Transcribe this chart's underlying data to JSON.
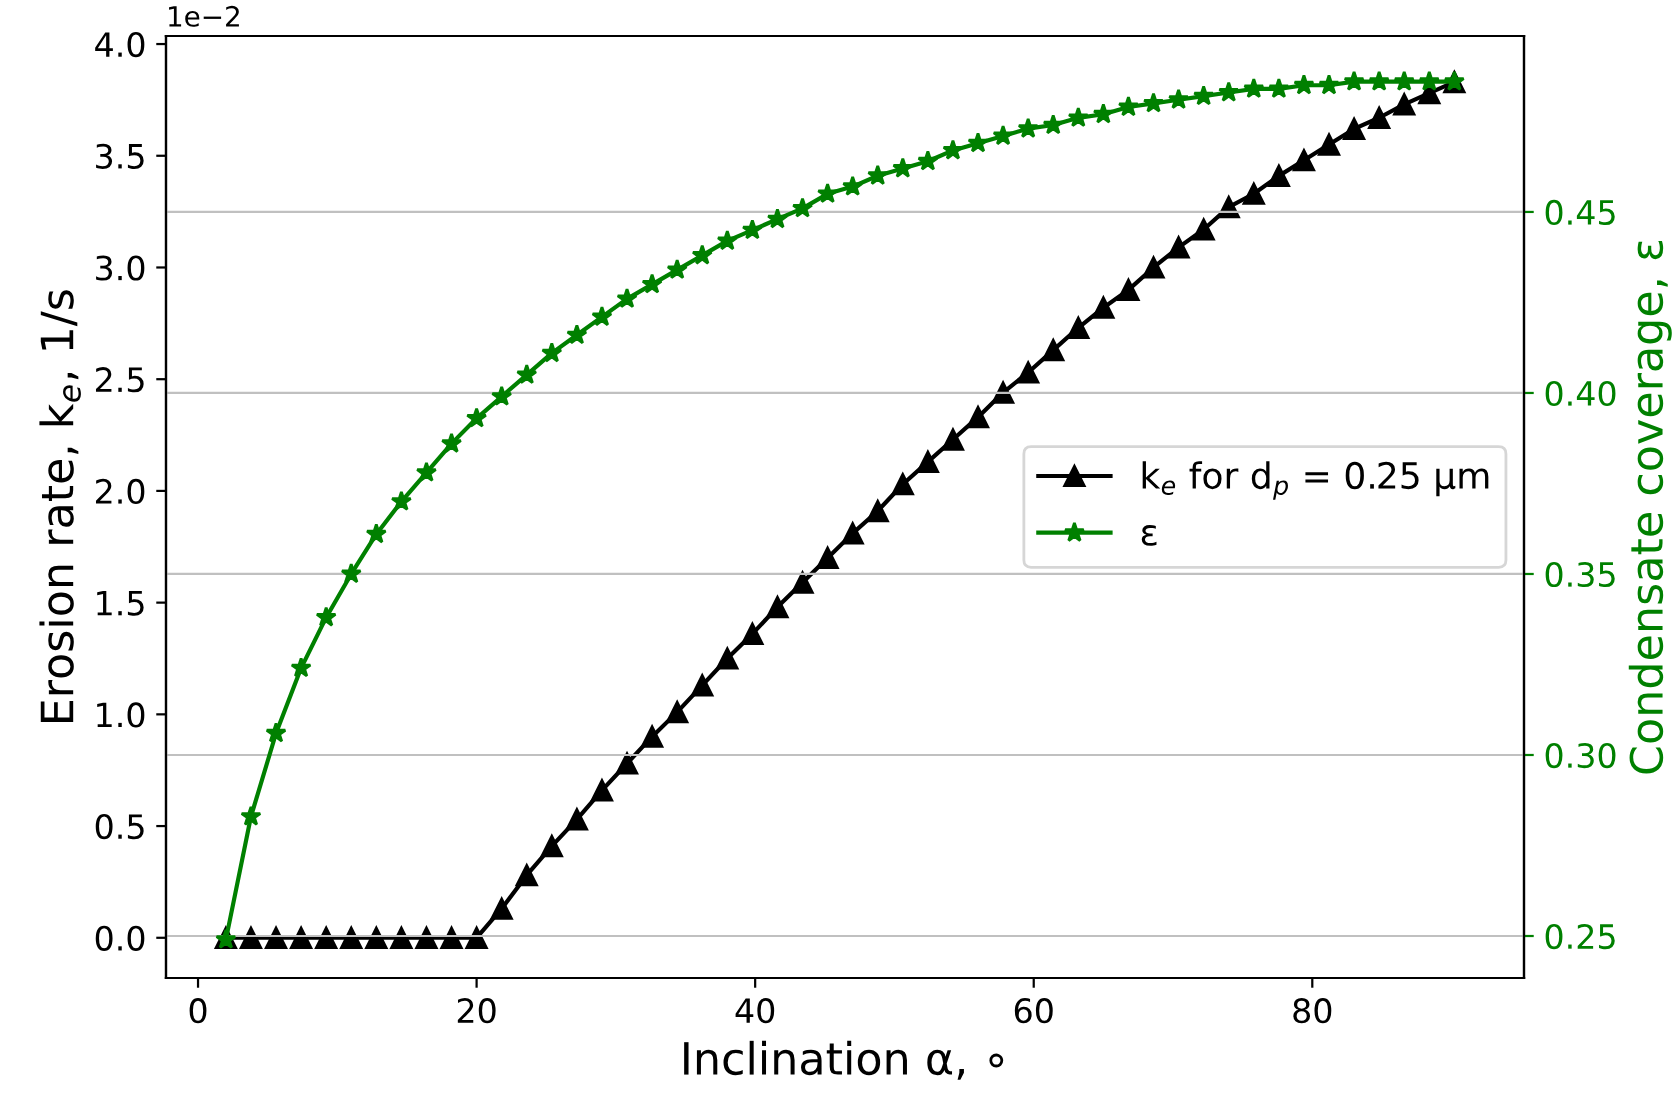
{
  "chart_data": {
    "type": "line",
    "xlabel": "Inclination α, ∘",
    "ylabel": "Erosion rate, k$_{e}$, 1/s",
    "y2label": "Condensate coverage, ε",
    "annotations": [
      "1e−2"
    ],
    "x": [
      2.0,
      3.8,
      5.6,
      7.4,
      9.2,
      11.0,
      12.8,
      14.6,
      16.4,
      18.2,
      20.0,
      21.8,
      23.6,
      25.4,
      27.2,
      29.0,
      30.8,
      32.6,
      34.4,
      36.2,
      38.0,
      39.8,
      41.6,
      43.4,
      45.2,
      47.0,
      48.8,
      50.6,
      52.4,
      54.2,
      56.0,
      57.8,
      59.6,
      61.4,
      63.2,
      65.0,
      66.8,
      68.6,
      70.4,
      72.2,
      74.0,
      75.8,
      77.6,
      79.4,
      81.2,
      83.0,
      84.8,
      86.6,
      88.4,
      90.2
    ],
    "series": [
      {
        "name": "k$_{e}$ for d$_{p}$ = 0.25 μm",
        "color": "#000000",
        "marker": "triangle",
        "values": [
          0,
          0,
          0,
          0,
          0,
          0,
          0,
          0,
          0,
          0,
          0,
          0.13,
          0.28,
          0.41,
          0.53,
          0.66,
          0.78,
          0.9,
          1.01,
          1.13,
          1.25,
          1.36,
          1.48,
          1.59,
          1.7,
          1.81,
          1.91,
          2.03,
          2.13,
          2.23,
          2.33,
          2.44,
          2.53,
          2.63,
          2.73,
          2.82,
          2.9,
          3.0,
          3.09,
          3.17,
          3.27,
          3.33,
          3.41,
          3.48,
          3.55,
          3.62,
          3.67,
          3.73,
          3.78,
          3.83
        ]
      },
      {
        "name": "ε",
        "color": "#008000",
        "marker": "star",
        "axis": "y2",
        "values": [
          0.249,
          0.283,
          0.306,
          0.324,
          0.338,
          0.35,
          0.361,
          0.37,
          0.378,
          0.386,
          0.393,
          0.399,
          0.405,
          0.411,
          0.416,
          0.421,
          0.426,
          0.43,
          0.434,
          0.438,
          0.442,
          0.445,
          0.448,
          0.451,
          0.455,
          0.457,
          0.46,
          0.462,
          0.464,
          0.467,
          0.469,
          0.471,
          0.473,
          0.474,
          0.476,
          0.477,
          0.479,
          0.48,
          0.481,
          0.482,
          0.483,
          0.484,
          0.484,
          0.485,
          0.485,
          0.486,
          0.486,
          0.486,
          0.486,
          0.486
        ]
      }
    ],
    "xlim": [
      -2.3,
      95.2
    ],
    "xticks": [
      0,
      20,
      40,
      60,
      80
    ],
    "ylim": [
      -0.18,
      4.036
    ],
    "yticks": [
      {
        "value": 0,
        "label": "0.0"
      },
      0.5,
      {
        "value": 1,
        "label": "1.0"
      },
      1.5,
      {
        "value": 2,
        "label": "2.0"
      },
      2.5,
      {
        "value": 3,
        "label": "3.0"
      },
      3.5,
      {
        "value": 4,
        "label": "4.0"
      }
    ],
    "y2lim": [
      0.2384,
      0.4986
    ],
    "y2ticks": [
      {
        "value": 0.25,
        "label": "0.25"
      },
      {
        "value": 0.3,
        "label": "0.30"
      },
      {
        "value": 0.35,
        "label": "0.35"
      },
      {
        "value": 0.4,
        "label": "0.40"
      },
      {
        "value": 0.45,
        "label": "0.45"
      }
    ],
    "grid": "y2",
    "legend": "center right",
    "line_style": "solid"
  }
}
